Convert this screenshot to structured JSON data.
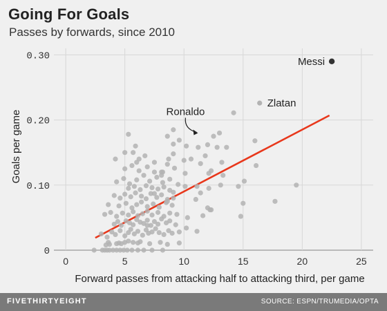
{
  "header": {
    "title": "Going For Goals",
    "subtitle": "Passes by forwards, since 2010"
  },
  "footer": {
    "logo": "FIVETHIRTYEIGHT",
    "source": "SOURCE: ESPN/TRUMEDIA/OPTA"
  },
  "colors": {
    "background": "#f0f0f0",
    "grid": "#d7d7d7",
    "point": "#b3b3b3",
    "highlight_point": "#333333",
    "trendline": "#e8371b",
    "footer": "#7a7a7a"
  },
  "chart_data": {
    "type": "scatter",
    "title": "Going For Goals",
    "subtitle": "Passes by forwards, since 2010",
    "xlabel": "Forward passes from attacking half to attacking third, per game",
    "ylabel": "Goals per game",
    "xlim": [
      -1,
      26
    ],
    "ylim": [
      0,
      0.31
    ],
    "x_ticks": [
      0,
      5,
      10,
      15,
      20,
      25
    ],
    "x_tick_labels": [
      "0",
      "5",
      "10",
      "15",
      "20",
      "25"
    ],
    "y_ticks": [
      0,
      0.1,
      0.2,
      0.3
    ],
    "y_tick_labels": [
      "0",
      "0.10",
      "0.20",
      "0.30"
    ],
    "grid": true,
    "trendline": {
      "x": [
        2.5,
        22.3
      ],
      "y": [
        0.019,
        0.207
      ]
    },
    "annotations": [
      {
        "label": "Messi",
        "x": 22.5,
        "y": 0.29,
        "highlight": true
      },
      {
        "label": "Zlatan",
        "x": 16.4,
        "y": 0.226,
        "highlight": false
      },
      {
        "label": "Ronaldo",
        "x": 11.3,
        "y": 0.18,
        "highlight": false,
        "arrow": true
      }
    ],
    "points": {
      "x": [
        2.4,
        3.1,
        3.3,
        3.5,
        3.7,
        4.0,
        4.3,
        4.6,
        4.9,
        5.2,
        5.6,
        6.1,
        6.6,
        7.3,
        8.2,
        3.4,
        3.7,
        3.6,
        4.3,
        4.5,
        4.7,
        5.0,
        5.3,
        5.7,
        6.1,
        6.3,
        7.1,
        8.0,
        8.6,
        9.6,
        3.0,
        3.5,
        3.9,
        4.2,
        4.6,
        5.0,
        5.3,
        5.5,
        5.8,
        6.1,
        6.5,
        6.8,
        7.0,
        7.3,
        7.6,
        7.9,
        8.3,
        8.7,
        9.0,
        9.6,
        10.2,
        11.1,
        4.1,
        4.4,
        4.7,
        5.1,
        5.4,
        5.7,
        6.0,
        6.3,
        6.6,
        6.9,
        7.2,
        7.5,
        7.8,
        8.1,
        8.5,
        8.8,
        9.3,
        3.3,
        3.8,
        4.3,
        4.8,
        5.3,
        5.7,
        6.1,
        6.5,
        6.9,
        7.3,
        7.8,
        8.3,
        8.8,
        9.4,
        10.3,
        11.6,
        12.2,
        4.5,
        5.1,
        5.6,
        6.0,
        6.4,
        6.9,
        7.4,
        7.9,
        8.5,
        9.0,
        3.6,
        4.1,
        4.6,
        5.0,
        5.5,
        5.9,
        6.4,
        6.8,
        7.2,
        7.7,
        8.1,
        8.6,
        9.1,
        5.3,
        5.8,
        6.3,
        6.8,
        7.3,
        7.8,
        8.3,
        8.8,
        4.3,
        4.9,
        5.4,
        6.0,
        6.6,
        7.1,
        7.7,
        8.2,
        8.8,
        10.1,
        11.1,
        12.1,
        13.1,
        14.6,
        5.0,
        5.6,
        6.2,
        6.9,
        7.5,
        8.1,
        8.6,
        9.2,
        10.0,
        10.6,
        11.4,
        12.3,
        13.3,
        9.1,
        8.6,
        9.1,
        9.6,
        10.2,
        11.2,
        11.8,
        12.5,
        13.0,
        12.0,
        16.1,
        19.5,
        17.7,
        15.0,
        14.8,
        5.3,
        5.9,
        5.0,
        6.0,
        9.1,
        8.2,
        10.1,
        11.0,
        12.0,
        13.2,
        11.4,
        6.2,
        6.7,
        7.5,
        4.2,
        16.0,
        14.2,
        13.6,
        12.8,
        12.1,
        8.6,
        9.1,
        7.5,
        5.7,
        8.7,
        9.5,
        8.1,
        6.9,
        12.3,
        15.1
      ],
      "y": [
        0.0,
        0.0,
        0.0,
        0.0,
        0.0,
        0.0,
        0.0,
        0.0,
        0.0,
        0.0,
        0.0,
        0.0,
        0.0,
        0.0,
        0.0,
        0.008,
        0.009,
        0.012,
        0.01,
        0.011,
        0.01,
        0.012,
        0.014,
        0.012,
        0.011,
        0.013,
        0.01,
        0.012,
        0.009,
        0.011,
        0.025,
        0.02,
        0.028,
        0.024,
        0.03,
        0.022,
        0.027,
        0.032,
        0.025,
        0.029,
        0.023,
        0.031,
        0.026,
        0.028,
        0.033,
        0.027,
        0.024,
        0.03,
        0.026,
        0.028,
        0.034,
        0.029,
        0.04,
        0.044,
        0.038,
        0.045,
        0.042,
        0.039,
        0.047,
        0.043,
        0.041,
        0.046,
        0.038,
        0.044,
        0.04,
        0.048,
        0.042,
        0.045,
        0.039,
        0.055,
        0.058,
        0.052,
        0.057,
        0.054,
        0.059,
        0.053,
        0.056,
        0.06,
        0.054,
        0.058,
        0.052,
        0.057,
        0.055,
        0.05,
        0.053,
        0.062,
        0.068,
        0.072,
        0.065,
        0.07,
        0.074,
        0.067,
        0.071,
        0.066,
        0.073,
        0.069,
        0.07,
        0.084,
        0.08,
        0.086,
        0.082,
        0.088,
        0.083,
        0.079,
        0.087,
        0.081,
        0.085,
        0.078,
        0.089,
        0.095,
        0.098,
        0.093,
        0.099,
        0.096,
        0.094,
        0.097,
        0.092,
        0.105,
        0.11,
        0.102,
        0.108,
        0.115,
        0.106,
        0.112,
        0.104,
        0.109,
        0.118,
        0.098,
        0.095,
        0.1,
        0.098,
        0.125,
        0.13,
        0.122,
        0.128,
        0.135,
        0.12,
        0.132,
        0.126,
        0.138,
        0.14,
        0.133,
        0.122,
        0.115,
        0.148,
        0.175,
        0.185,
        0.169,
        0.16,
        0.158,
        0.145,
        0.175,
        0.18,
        0.162,
        0.13,
        0.1,
        0.075,
        0.072,
        0.052,
        0.178,
        0.16,
        0.15,
        0.135,
        0.163,
        0.12,
        0.098,
        0.078,
        0.065,
        0.135,
        0.088,
        0.14,
        0.145,
        0.12,
        0.14,
        0.168,
        0.211,
        0.158,
        0.158,
        0.118,
        0.075,
        0.08,
        0.087,
        0.15,
        0.14,
        0.101,
        0.115,
        0.038,
        0.062,
        0.106
      ]
    }
  }
}
